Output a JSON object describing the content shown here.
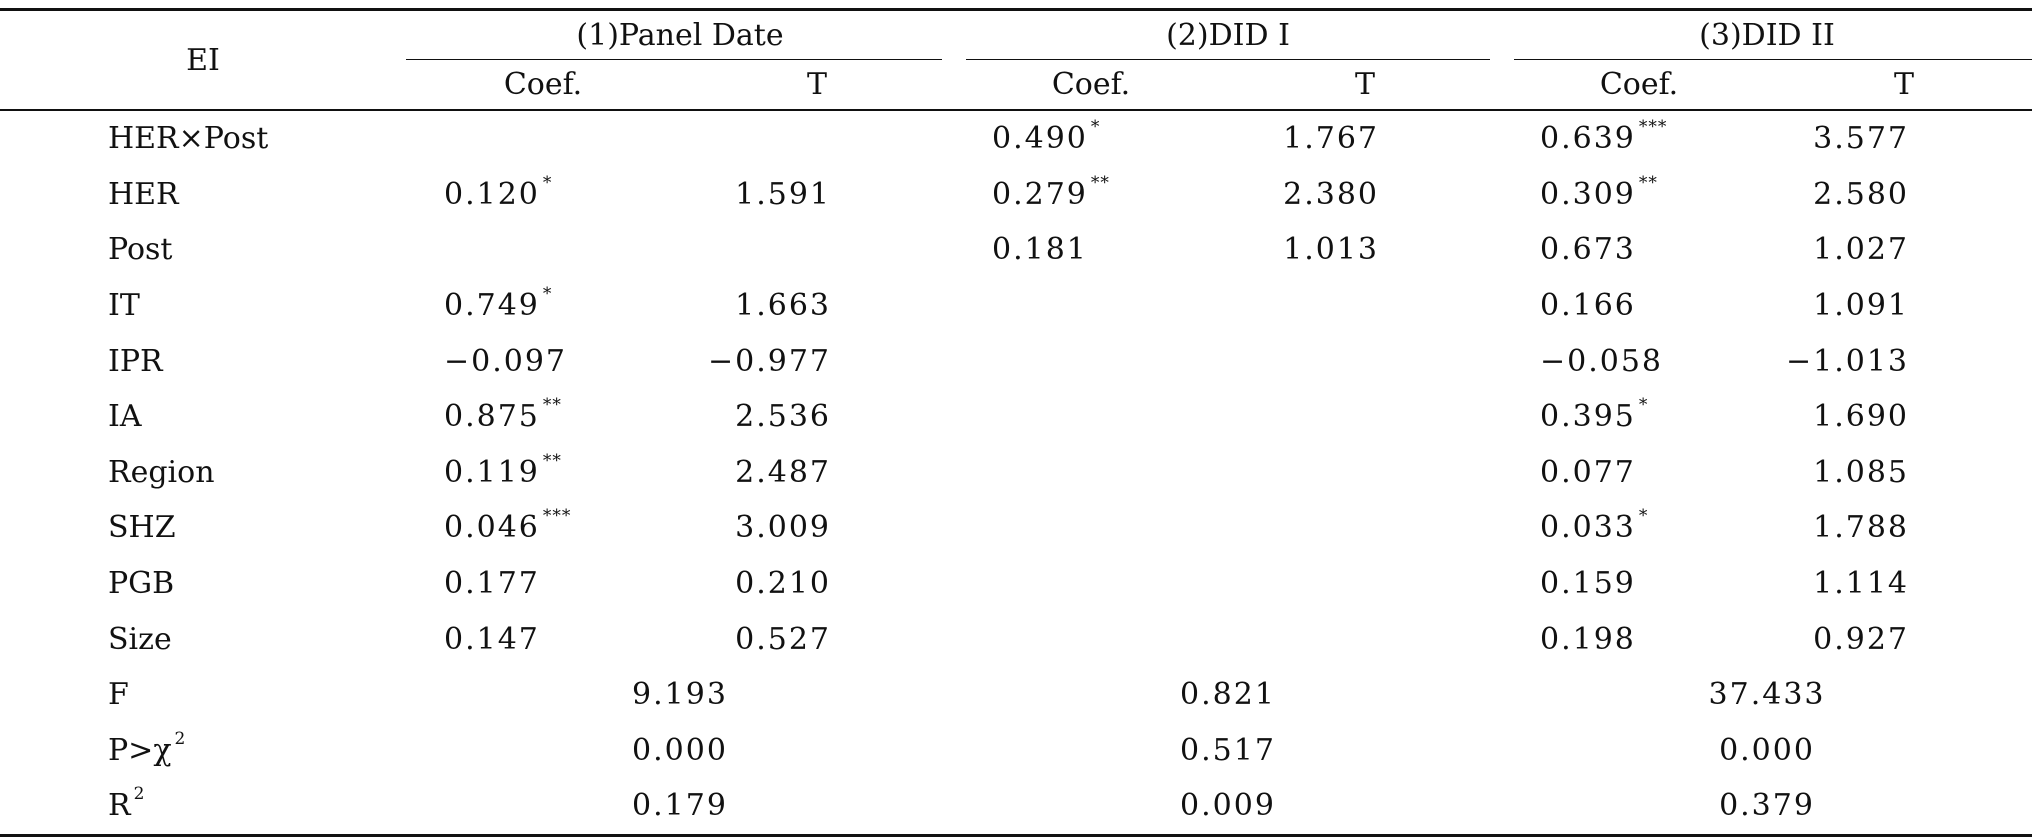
{
  "table": {
    "corner": "EI",
    "groups": [
      {
        "label": "(1)Panel Date"
      },
      {
        "label": "(2)DID I"
      },
      {
        "label": "(3)DID II"
      }
    ],
    "sub_headers": [
      "Coef.",
      "T",
      "Coef.",
      "T",
      "Coef.",
      "T"
    ],
    "rows": [
      {
        "var": "HER×Post",
        "cells": [
          [
            "",
            ""
          ],
          [
            "",
            ""
          ],
          [
            "0.490",
            "*"
          ],
          [
            "1.767",
            ""
          ],
          [
            "0.639",
            "***"
          ],
          [
            "3.577",
            ""
          ]
        ]
      },
      {
        "var": "HER",
        "cells": [
          [
            "0.120",
            "*"
          ],
          [
            "1.591",
            ""
          ],
          [
            "0.279",
            "**"
          ],
          [
            "2.380",
            ""
          ],
          [
            "0.309",
            "**"
          ],
          [
            "2.580",
            ""
          ]
        ]
      },
      {
        "var": "Post",
        "cells": [
          [
            "",
            ""
          ],
          [
            "",
            ""
          ],
          [
            "0.181",
            ""
          ],
          [
            "1.013",
            ""
          ],
          [
            "0.673",
            ""
          ],
          [
            "1.027",
            ""
          ]
        ]
      },
      {
        "var": "IT",
        "cells": [
          [
            "0.749",
            "*"
          ],
          [
            "1.663",
            ""
          ],
          [
            "",
            ""
          ],
          [
            "",
            ""
          ],
          [
            "0.166",
            ""
          ],
          [
            "1.091",
            ""
          ]
        ]
      },
      {
        "var": "IPR",
        "cells": [
          [
            "−0.097",
            ""
          ],
          [
            "−0.977",
            ""
          ],
          [
            "",
            ""
          ],
          [
            "",
            ""
          ],
          [
            "−0.058",
            ""
          ],
          [
            "−1.013",
            ""
          ]
        ]
      },
      {
        "var": "IA",
        "cells": [
          [
            "0.875",
            "**"
          ],
          [
            "2.536",
            ""
          ],
          [
            "",
            ""
          ],
          [
            "",
            ""
          ],
          [
            "0.395",
            "*"
          ],
          [
            "1.690",
            ""
          ]
        ]
      },
      {
        "var": "Region",
        "cells": [
          [
            "0.119",
            "**"
          ],
          [
            "2.487",
            ""
          ],
          [
            "",
            ""
          ],
          [
            "",
            ""
          ],
          [
            "0.077",
            ""
          ],
          [
            "1.085",
            ""
          ]
        ]
      },
      {
        "var": "SHZ",
        "cells": [
          [
            "0.046",
            "***"
          ],
          [
            "3.009",
            ""
          ],
          [
            "",
            ""
          ],
          [
            "",
            ""
          ],
          [
            "0.033",
            "*"
          ],
          [
            "1.788",
            ""
          ]
        ]
      },
      {
        "var": "PGB",
        "cells": [
          [
            "0.177",
            ""
          ],
          [
            "0.210",
            ""
          ],
          [
            "",
            ""
          ],
          [
            "",
            ""
          ],
          [
            "0.159",
            ""
          ],
          [
            "1.114",
            ""
          ]
        ]
      },
      {
        "var": "Size",
        "cells": [
          [
            "0.147",
            ""
          ],
          [
            "0.527",
            ""
          ],
          [
            "",
            ""
          ],
          [
            "",
            ""
          ],
          [
            "0.198",
            ""
          ],
          [
            "0.927",
            ""
          ]
        ]
      }
    ],
    "summary": [
      {
        "label": "F",
        "sup": "",
        "values": [
          "9.193",
          "0.821",
          "37.433"
        ]
      },
      {
        "label": "P>χ",
        "sup": "2",
        "values": [
          "0.000",
          "0.517",
          "0.000"
        ]
      },
      {
        "label": "R",
        "sup": "2",
        "values": [
          "0.179",
          "0.009",
          "0.379"
        ]
      }
    ]
  }
}
